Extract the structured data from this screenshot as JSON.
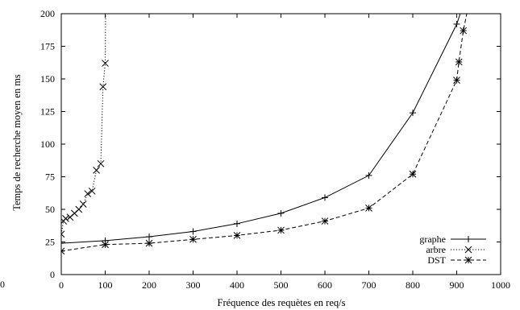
{
  "chart_data": {
    "type": "line",
    "title": "",
    "xlabel": "Fréquence des requètes en req/s",
    "ylabel": "Temps de recherche moyen en ms",
    "xlim": [
      0,
      1000
    ],
    "ylim": [
      0,
      200
    ],
    "x_ticks": [
      0,
      100,
      200,
      300,
      400,
      500,
      600,
      700,
      800,
      900,
      1000
    ],
    "y_ticks": [
      0,
      25,
      50,
      75,
      100,
      125,
      150,
      175,
      200
    ],
    "stray_left_label": "0",
    "grid": false,
    "legend_position": "bottom-right",
    "series": [
      {
        "name": "graphe",
        "line_style": "solid",
        "marker": "plus",
        "color": "#000000",
        "x": [
          0,
          100,
          200,
          300,
          400,
          500,
          600,
          700,
          800,
          900,
          920
        ],
        "y": [
          24,
          26,
          29,
          33,
          39,
          47,
          59,
          76,
          124,
          192,
          212
        ],
        "marker_count": 10
      },
      {
        "name": "arbre",
        "line_style": "dotted",
        "marker": "cross",
        "color": "#000000",
        "x": [
          0,
          5,
          10,
          20,
          30,
          40,
          50,
          60,
          70,
          80,
          90,
          95,
          100,
          101
        ],
        "y": [
          31,
          41,
          43,
          44,
          47,
          50,
          54,
          62,
          64,
          80,
          85,
          144,
          162,
          200
        ],
        "marker_count": 13
      },
      {
        "name": "DST",
        "line_style": "dashed",
        "marker": "asterisk",
        "color": "#000000",
        "x": [
          0,
          100,
          200,
          300,
          400,
          500,
          600,
          700,
          800,
          900,
          905,
          915,
          930
        ],
        "y": [
          18,
          23,
          24,
          27,
          30,
          34,
          41,
          51,
          77,
          149,
          163,
          187,
          212
        ],
        "marker_count": 12
      }
    ]
  }
}
